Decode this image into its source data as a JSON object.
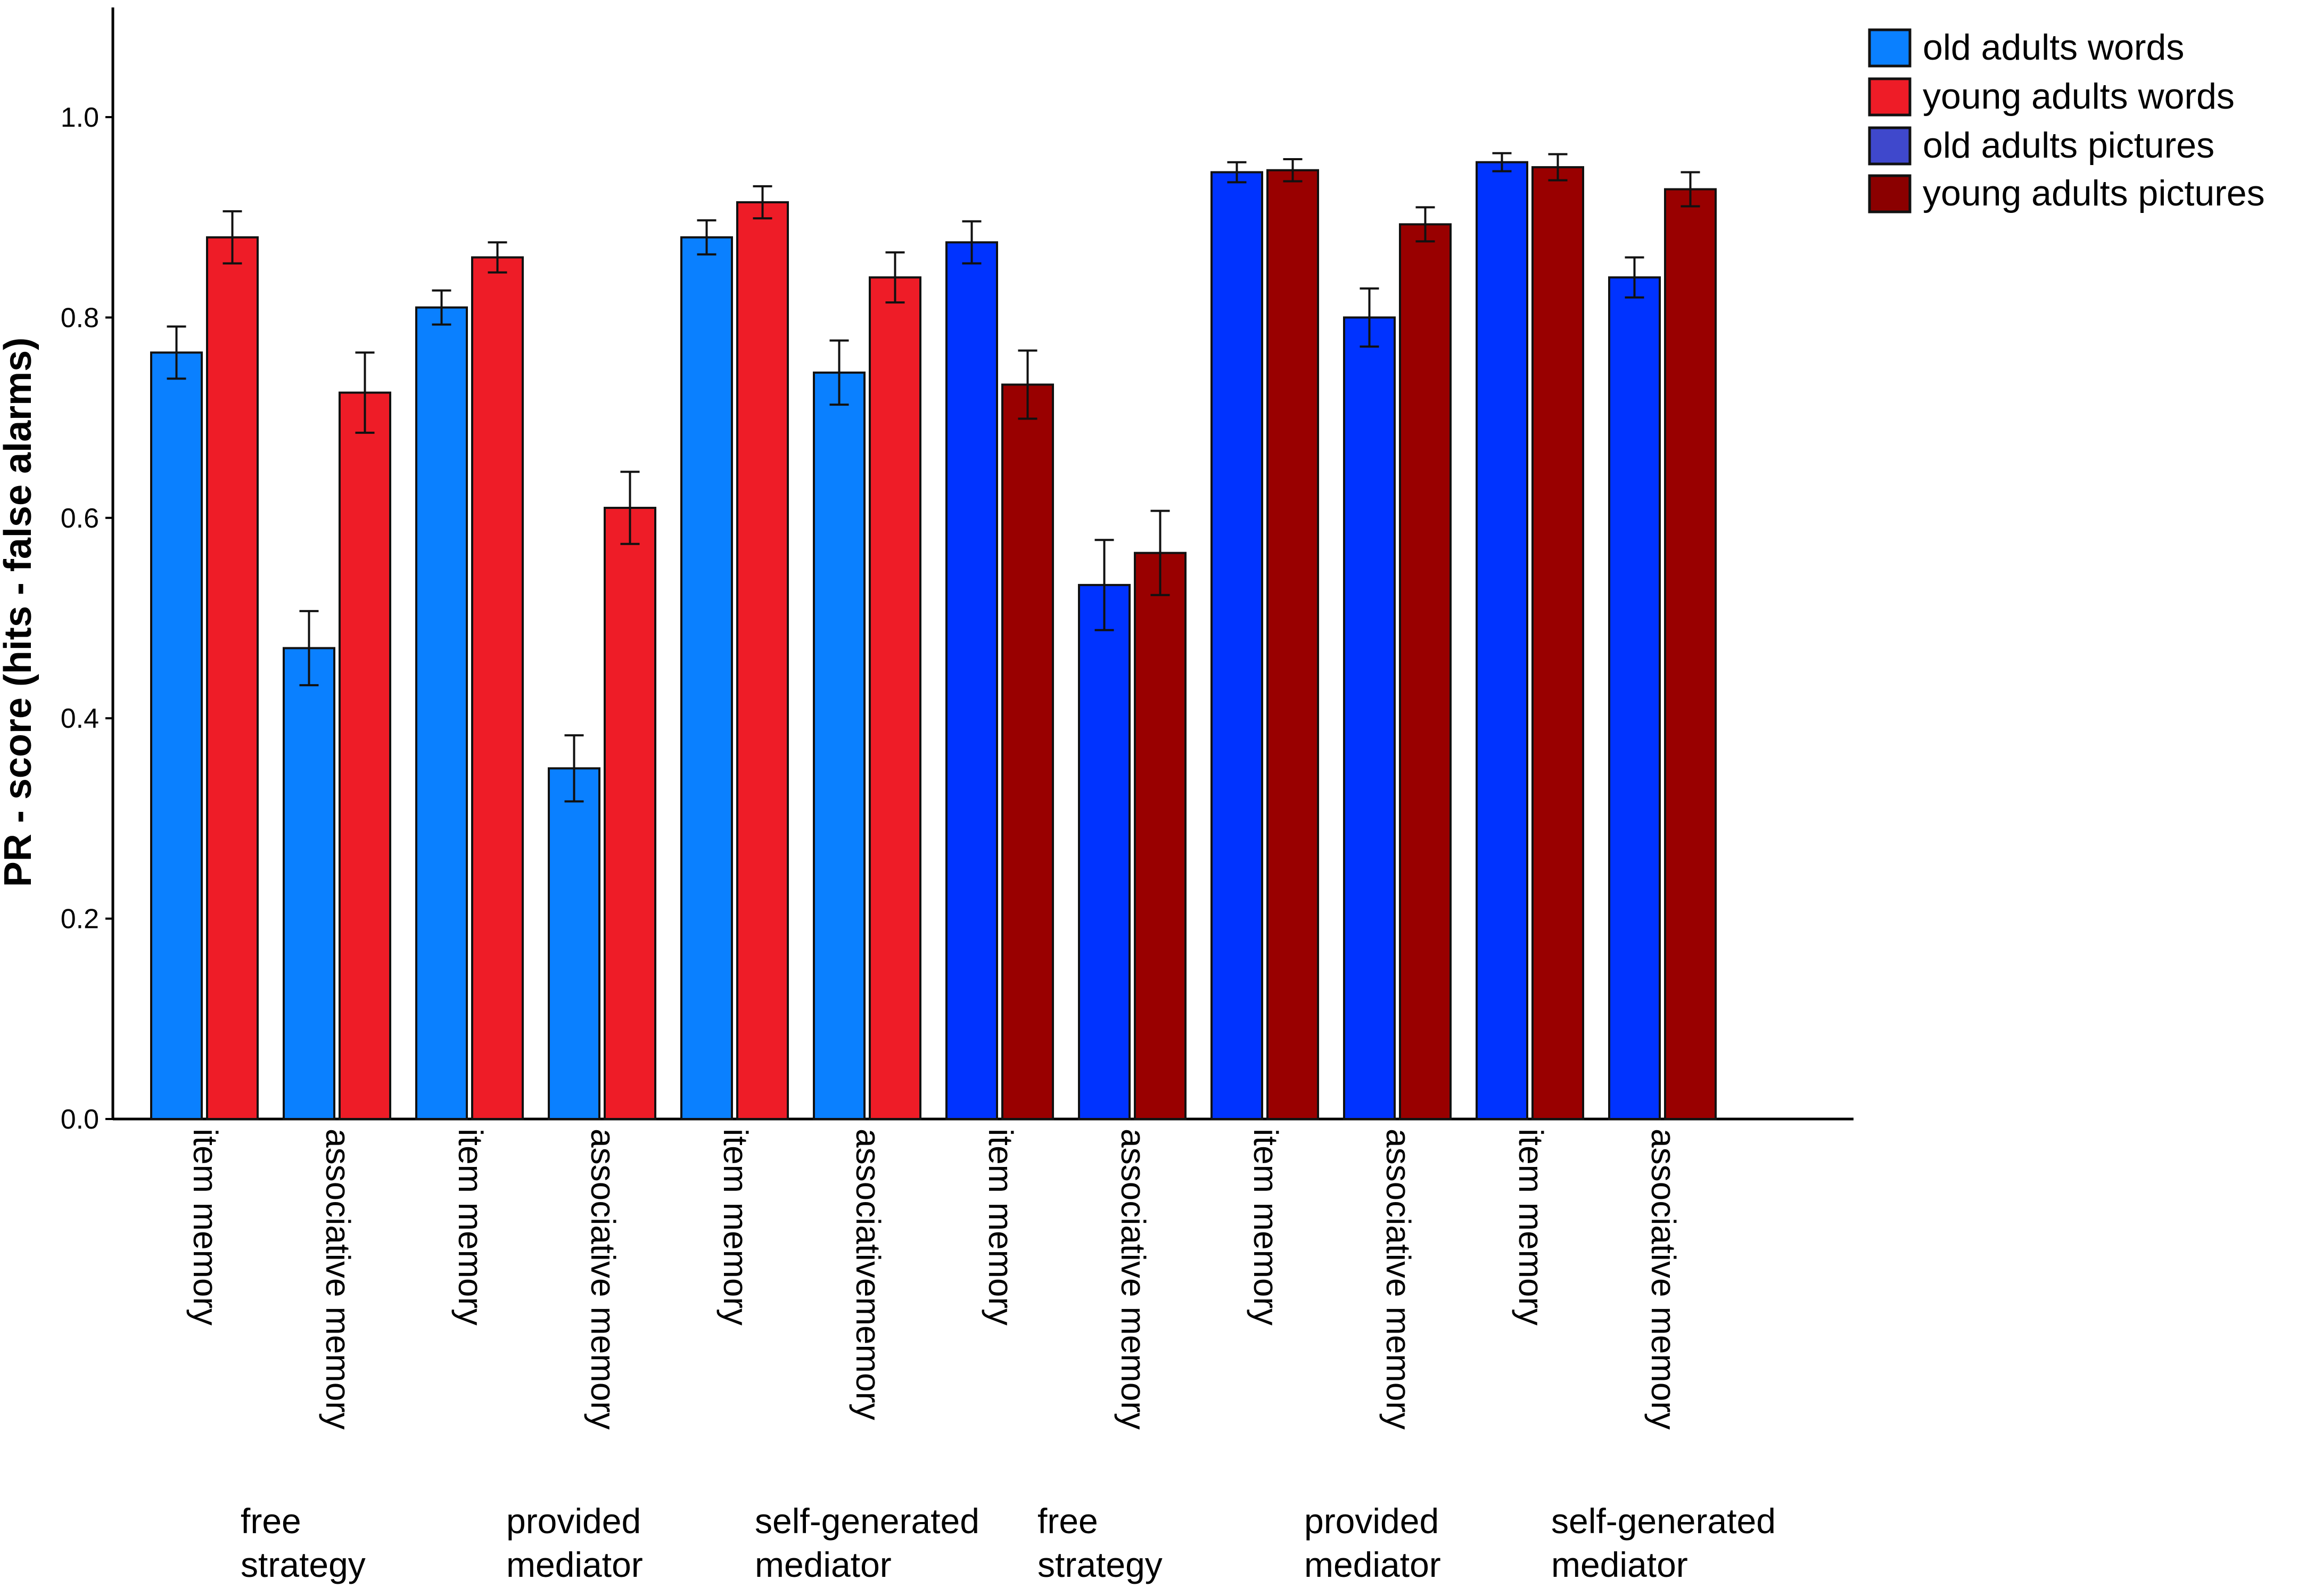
{
  "chart_data": {
    "type": "bar",
    "title": "",
    "xlabel": "",
    "ylabel": "PR - score (hits - false alarms)",
    "ylim": [
      0,
      1.1
    ],
    "yticks": [
      "0.0",
      "0.2",
      "0.4",
      "0.6",
      "0.8",
      "1.0"
    ],
    "legend_position": "top-right",
    "legend": [
      {
        "label": "old adults words",
        "color": "#0a80ff"
      },
      {
        "label": "young adults words",
        "color": "#ee1c27"
      },
      {
        "label": "old adults pictures",
        "color": "#3f48cc"
      },
      {
        "label": "young adults pictures",
        "color": "#8b0000"
      }
    ],
    "categories": [
      "item memory",
      "associative memory",
      "item memory",
      "associative memory",
      "item memory",
      "associativememory",
      "item memory",
      "associative memory",
      "item memory",
      "associative memory",
      "item memory",
      "associative memory"
    ],
    "groups": [
      [
        "free",
        "strategy"
      ],
      [
        "provided",
        "mediator"
      ],
      [
        "self-generated",
        "mediator"
      ],
      [
        "free",
        "strategy"
      ],
      [
        "provided",
        "mediator"
      ],
      [
        "self-generated",
        "mediator"
      ]
    ],
    "series": [
      {
        "name": "old adults",
        "colors": [
          "#0a80ff",
          "#0a80ff",
          "#0a80ff",
          "#0a80ff",
          "#0a80ff",
          "#0a80ff",
          "#0033ff",
          "#0033ff",
          "#0033ff",
          "#0033ff",
          "#0033ff",
          "#0033ff"
        ],
        "values": [
          0.765,
          0.47,
          0.81,
          0.35,
          0.88,
          0.745,
          0.875,
          0.533,
          0.945,
          0.8,
          0.955,
          0.84
        ],
        "errors": [
          0.026,
          0.037,
          0.017,
          0.033,
          0.017,
          0.032,
          0.021,
          0.045,
          0.01,
          0.029,
          0.009,
          0.02
        ]
      },
      {
        "name": "young adults",
        "colors": [
          "#ee1c27",
          "#ee1c27",
          "#ee1c27",
          "#ee1c27",
          "#ee1c27",
          "#ee1c27",
          "#990000",
          "#990000",
          "#990000",
          "#990000",
          "#990000",
          "#990000"
        ],
        "values": [
          0.88,
          0.725,
          0.86,
          0.61,
          0.915,
          0.84,
          0.733,
          0.565,
          0.947,
          0.893,
          0.95,
          0.928
        ],
        "errors": [
          0.026,
          0.04,
          0.015,
          0.036,
          0.016,
          0.025,
          0.034,
          0.042,
          0.011,
          0.017,
          0.013,
          0.017
        ]
      }
    ]
  }
}
